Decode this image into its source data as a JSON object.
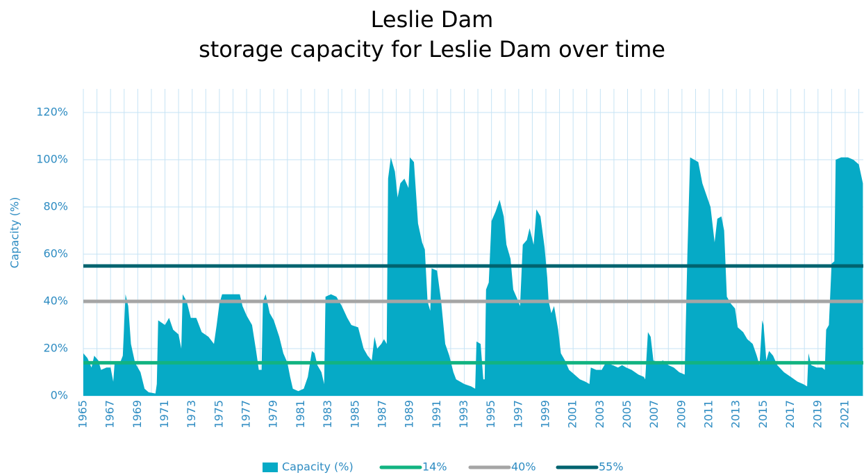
{
  "chart_data": {
    "type": "area",
    "title": "Leslie Dam",
    "subtitle": "storage capacity for Leslie Dam over time",
    "ylabel": "Capacity (%)",
    "xlim": [
      1965,
      2022.33
    ],
    "xticks": [
      1965,
      1967,
      1969,
      1971,
      1973,
      1975,
      1977,
      1979,
      1981,
      1983,
      1985,
      1987,
      1989,
      1991,
      1993,
      1995,
      1997,
      1999,
      2001,
      2003,
      2005,
      2007,
      2009,
      2011,
      2013,
      2015,
      2017,
      2019,
      2021
    ],
    "xminor_ticks": [
      1966,
      1968,
      1970,
      1972,
      1974,
      1976,
      1978,
      1980,
      1982,
      1984,
      1986,
      1988,
      1990,
      1992,
      1994,
      1996,
      1998,
      2000,
      2002,
      2004,
      2006,
      2008,
      2010,
      2012,
      2014,
      2016,
      2018,
      2020,
      2022
    ],
    "ylim": [
      0,
      130
    ],
    "yticks": [
      {
        "value": 0,
        "label": "0%"
      },
      {
        "value": 20,
        "label": "20%"
      },
      {
        "value": 40,
        "label": "40%"
      },
      {
        "value": 60,
        "label": "60%"
      },
      {
        "value": 80,
        "label": "80%"
      },
      {
        "value": 100,
        "label": "100%"
      },
      {
        "value": 120,
        "label": "120%"
      }
    ],
    "grid": true,
    "x": [
      1965.0,
      1965.3,
      1965.6,
      1965.8,
      1966.1,
      1966.3,
      1966.7,
      1967.0,
      1967.2,
      1967.3,
      1967.7,
      1967.9,
      1968.1,
      1968.3,
      1968.5,
      1968.8,
      1969.2,
      1969.5,
      1969.8,
      1970.3,
      1970.4,
      1970.5,
      1971.0,
      1971.3,
      1971.6,
      1972.0,
      1972.2,
      1972.3,
      1972.6,
      1972.9,
      1973.3,
      1973.7,
      1974.2,
      1974.6,
      1974.8,
      1975.0,
      1975.2,
      1975.8,
      1976.5,
      1976.7,
      1977.0,
      1977.4,
      1977.7,
      1977.9,
      1978.1,
      1978.2,
      1978.4,
      1978.7,
      1979.0,
      1979.4,
      1979.7,
      1980.0,
      1980.2,
      1980.4,
      1980.8,
      1981.2,
      1981.5,
      1981.8,
      1982.0,
      1982.2,
      1982.5,
      1982.7,
      1982.8,
      1983.2,
      1983.6,
      1984.0,
      1984.4,
      1984.7,
      1985.2,
      1985.6,
      1985.9,
      1986.2,
      1986.4,
      1986.6,
      1986.9,
      1987.1,
      1987.3,
      1987.4,
      1987.6,
      1987.9,
      1988.1,
      1988.3,
      1988.6,
      1988.9,
      1989.0,
      1989.3,
      1989.6,
      1989.9,
      1990.1,
      1990.3,
      1990.5,
      1990.6,
      1991.0,
      1991.3,
      1991.6,
      1991.9,
      1992.2,
      1992.4,
      1993.0,
      1993.5,
      1993.8,
      1993.9,
      1994.2,
      1994.4,
      1994.5,
      1994.6,
      1994.8,
      1995.0,
      1995.3,
      1995.6,
      1995.9,
      1996.1,
      1996.4,
      1996.6,
      1996.9,
      1997.1,
      1997.3,
      1997.6,
      1997.8,
      1998.1,
      1998.3,
      1998.6,
      1998.9,
      1999.1,
      1999.2,
      1999.4,
      1999.6,
      1999.9,
      2000.1,
      2000.4,
      2000.7,
      2001.1,
      2001.5,
      2001.9,
      2002.2,
      2002.3,
      2002.7,
      2003.1,
      2003.4,
      2003.9,
      2004.3,
      2004.6,
      2004.9,
      2005.3,
      2005.8,
      2006.2,
      2006.3,
      2006.5,
      2006.7,
      2006.9,
      2007.3,
      2007.6,
      2008.0,
      2008.4,
      2008.8,
      2009.2,
      2009.4,
      2009.6,
      2009.9,
      2010.2,
      2010.5,
      2010.8,
      2011.1,
      2011.4,
      2011.6,
      2011.9,
      2012.1,
      2012.3,
      2012.6,
      2012.9,
      2013.1,
      2013.5,
      2013.8,
      2014.2,
      2014.5,
      2014.7,
      2014.9,
      2015.0,
      2015.2,
      2015.4,
      2015.7,
      2016.0,
      2016.5,
      2017.0,
      2017.5,
      2017.9,
      2018.2,
      2018.3,
      2018.5,
      2018.9,
      2019.3,
      2019.5,
      2019.6,
      2019.8,
      2020.0,
      2020.2,
      2020.3,
      2020.7,
      2021.2,
      2021.6,
      2022.0,
      2022.3
    ],
    "series": [
      {
        "name": "Capacity (%)",
        "color": "#06aac6",
        "values": [
          18,
          16,
          12,
          17,
          15,
          11,
          12,
          12,
          6,
          14,
          14,
          17,
          43,
          38,
          22,
          14,
          10,
          3,
          1.5,
          1,
          5,
          32,
          30,
          33,
          28,
          26,
          20,
          43,
          40,
          33,
          33,
          27,
          25,
          22,
          30,
          39,
          43,
          43,
          43,
          38,
          34,
          30,
          19,
          11,
          11,
          40,
          43,
          35,
          32,
          25,
          18,
          14,
          8,
          3,
          2,
          3,
          8,
          19,
          18,
          13,
          10,
          5,
          42,
          43,
          42,
          38,
          33,
          30,
          29,
          20,
          17,
          15,
          25,
          20,
          22,
          24,
          22,
          92,
          101,
          95,
          84,
          90,
          92,
          88,
          101,
          99,
          73,
          65,
          62,
          40,
          36,
          54,
          53,
          40,
          22,
          17,
          10,
          7,
          5,
          4,
          3,
          23,
          22,
          7,
          7,
          45,
          48,
          74,
          78,
          83,
          76,
          64,
          58,
          45,
          41,
          38,
          64,
          66,
          71,
          64,
          79,
          76,
          63,
          50,
          40,
          35,
          38,
          28,
          18,
          15,
          11,
          9,
          7,
          6,
          5,
          12,
          11,
          11,
          14,
          13,
          12,
          13,
          12,
          11,
          9,
          8,
          7,
          27,
          25,
          15,
          14,
          15,
          13,
          12,
          10,
          9,
          60,
          101,
          100,
          99,
          90,
          85,
          80,
          65,
          75,
          76,
          70,
          42,
          39,
          37,
          29,
          27,
          24,
          22,
          17,
          13,
          32,
          30,
          15,
          19,
          17,
          13,
          10,
          8,
          6,
          5,
          4,
          18,
          13,
          12,
          12,
          11,
          28,
          30,
          56,
          57,
          100,
          101,
          101,
          100,
          98,
          90
        ]
      }
    ],
    "reference_lines": [
      {
        "name": "14%",
        "value": 14,
        "color": "#12b381"
      },
      {
        "name": "40%",
        "value": 40,
        "color": "#a5a5a5"
      },
      {
        "name": "55%",
        "value": 55,
        "color": "#00636f"
      }
    ]
  }
}
